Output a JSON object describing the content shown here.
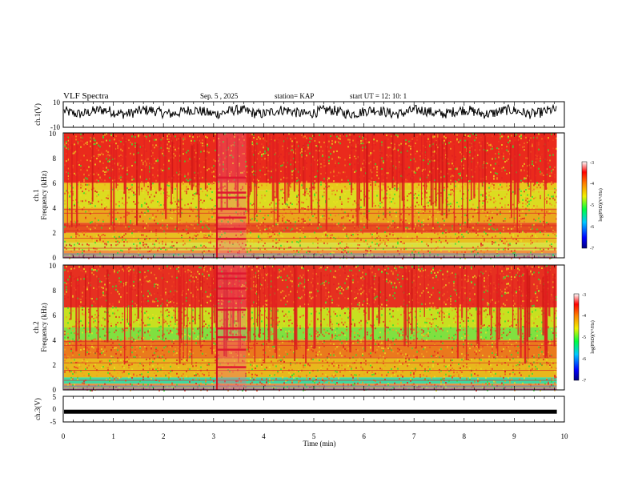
{
  "header": {
    "title": "VLF Spectra",
    "date": "Sep. 5  , 2025",
    "station": "station= KAP",
    "start": "start  UT  =   12: 10: 1"
  },
  "colors": {
    "red": "#e02020",
    "orange": "#f07020",
    "yellow": "#e8e020",
    "green": "#20e020",
    "cyan": "#20c8e8",
    "blue": "#2040e0",
    "trace": "#000000"
  },
  "chart_data": [
    {
      "type": "line",
      "name": "ch1-waveform",
      "ylabel": "ch.1(V)",
      "ylim": [
        -10,
        10
      ],
      "yticks": [
        "10",
        "-10"
      ],
      "xlim": [
        0,
        10
      ],
      "description_values": {
        "mean": 2,
        "spread": 5
      }
    },
    {
      "type": "heatmap",
      "name": "ch1-spectrogram",
      "ylabel": "ch.1\nFrequency (kHz)",
      "ylabel_line1": "ch.1",
      "ylabel_line2": "Frequency  (kHz)",
      "ylim": [
        0,
        10
      ],
      "yticks": [
        "0",
        "2",
        "4",
        "6",
        "8",
        "10"
      ],
      "xlim": [
        0,
        9.85
      ],
      "burst_minutes": [
        3.05,
        3.65
      ],
      "colorbar": {
        "label": "log(PSD)(V²/Hz)",
        "range": [
          -7,
          -3
        ],
        "ticks": [
          "-3",
          "-4",
          "-5",
          "-6",
          "-7"
        ]
      }
    },
    {
      "type": "heatmap",
      "name": "ch2-spectrogram",
      "ylabel_line1": "ch.2",
      "ylabel_line2": "Frequency  (kHz)",
      "ylim": [
        0,
        10
      ],
      "yticks": [
        "0",
        "2",
        "4",
        "6",
        "8",
        "10"
      ],
      "xlim": [
        0,
        9.85
      ],
      "burst_minutes": [
        3.05,
        3.65
      ],
      "colorbar": {
        "label": "log(PSD)(V²/Hz)",
        "range": [
          -7,
          -3
        ],
        "ticks": [
          "-3",
          "-4",
          "-5",
          "-6",
          "-7"
        ]
      }
    },
    {
      "type": "line",
      "name": "ch3-waveform",
      "ylabel": "ch.3(V)",
      "ylim": [
        -5,
        5
      ],
      "yticks": [
        "5",
        "0",
        "-5"
      ],
      "xlim": [
        0,
        9.85
      ],
      "constant_value": -1
    }
  ],
  "xaxis": {
    "label": "Time  (min)",
    "range": [
      0,
      10
    ],
    "ticks": [
      "0",
      "1",
      "2",
      "3",
      "4",
      "5",
      "6",
      "7",
      "8",
      "9",
      "10"
    ]
  }
}
